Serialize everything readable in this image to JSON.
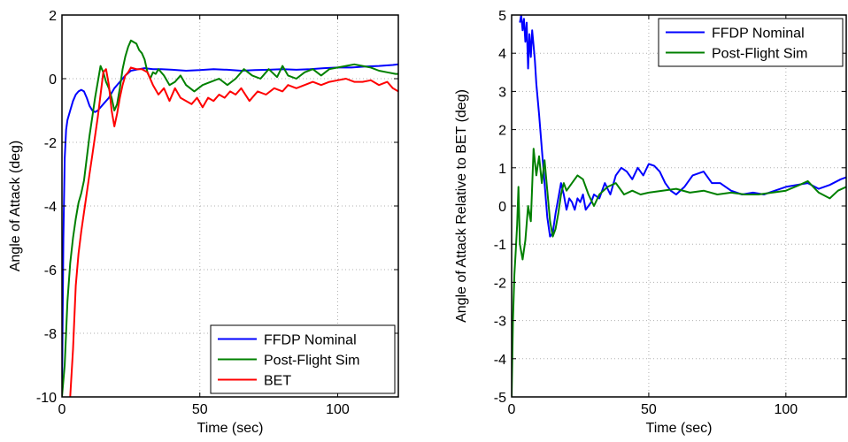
{
  "chart_data": [
    {
      "type": "line",
      "title": "",
      "xlabel": "Time (sec)",
      "ylabel": "Angle of Attack (deg)",
      "xlim": [
        0,
        122
      ],
      "ylim": [
        -10,
        2
      ],
      "xticks": [
        0,
        50,
        100
      ],
      "yticks": [
        -10,
        -8,
        -6,
        -4,
        -2,
        0,
        2
      ],
      "grid": true,
      "legend_position": "bottom-right",
      "series": [
        {
          "name": "FFDP Nominal",
          "color": "#0000ff",
          "x": [
            0,
            0.5,
            1,
            1.5,
            2,
            3,
            4,
            5,
            6,
            7,
            8,
            9,
            10,
            11,
            12,
            13,
            14,
            15,
            17,
            19,
            21,
            23,
            25,
            28,
            30,
            33,
            36,
            40,
            45,
            50,
            55,
            60,
            65,
            70,
            75,
            80,
            85,
            90,
            95,
            100,
            105,
            110,
            115,
            120,
            122
          ],
          "y": [
            -10,
            -5,
            -2.5,
            -1.6,
            -1.3,
            -1.0,
            -0.7,
            -0.5,
            -0.4,
            -0.35,
            -0.4,
            -0.6,
            -0.85,
            -1.0,
            -1.05,
            -1.0,
            -0.9,
            -0.8,
            -0.6,
            -0.3,
            -0.1,
            0.1,
            0.25,
            0.3,
            0.33,
            0.3,
            0.3,
            0.28,
            0.25,
            0.27,
            0.3,
            0.28,
            0.25,
            0.27,
            0.28,
            0.3,
            0.28,
            0.3,
            0.33,
            0.35,
            0.35,
            0.38,
            0.4,
            0.43,
            0.45
          ]
        },
        {
          "name": "Post-Flight Sim",
          "color": "#008000",
          "x": [
            0,
            1,
            2,
            3,
            4,
            5,
            6,
            7,
            8,
            9,
            10,
            11,
            12,
            13,
            14,
            15,
            16,
            17,
            18,
            19,
            20,
            21,
            22,
            23,
            24,
            25,
            26,
            27,
            28,
            29,
            30,
            31,
            32,
            33,
            34,
            35,
            37,
            39,
            41,
            43,
            45,
            48,
            51,
            54,
            57,
            60,
            63,
            66,
            69,
            72,
            75,
            78,
            80,
            82,
            85,
            88,
            91,
            94,
            97,
            100,
            103,
            106,
            109,
            112,
            115,
            118,
            121,
            122
          ],
          "y": [
            -10,
            -9,
            -7,
            -5.8,
            -5,
            -4.4,
            -3.9,
            -3.6,
            -3.2,
            -2.5,
            -1.8,
            -1.2,
            -0.6,
            -0.1,
            0.4,
            0.2,
            -0.1,
            -0.3,
            -0.6,
            -1.0,
            -0.8,
            -0.3,
            0.3,
            0.7,
            1.0,
            1.2,
            1.15,
            1.1,
            0.9,
            0.8,
            0.6,
            0.2,
            0.0,
            0.2,
            0.15,
            0.3,
            0.1,
            -0.2,
            -0.1,
            0.1,
            -0.2,
            -0.4,
            -0.2,
            -0.1,
            0.0,
            -0.2,
            0.0,
            0.3,
            0.1,
            0.0,
            0.3,
            0.05,
            0.4,
            0.1,
            0.0,
            0.2,
            0.3,
            0.1,
            0.3,
            0.35,
            0.4,
            0.45,
            0.4,
            0.35,
            0.25,
            0.2,
            0.15,
            0.15
          ]
        },
        {
          "name": "BET",
          "color": "#ff0000",
          "x": [
            3,
            4,
            5,
            6,
            7,
            8,
            9,
            10,
            11,
            12,
            13,
            14,
            15,
            16,
            17,
            18,
            19,
            20,
            21,
            22,
            23,
            24,
            25,
            27,
            29,
            31,
            33,
            35,
            37,
            39,
            41,
            43,
            45,
            47,
            49,
            51,
            53,
            55,
            57,
            59,
            61,
            63,
            65,
            68,
            71,
            74,
            77,
            80,
            82,
            85,
            88,
            91,
            94,
            97,
            100,
            103,
            106,
            109,
            112,
            115,
            118,
            120,
            122
          ],
          "y": [
            -10,
            -8.5,
            -6.5,
            -5.5,
            -4.8,
            -4.2,
            -3.6,
            -3.0,
            -2.4,
            -1.8,
            -1.2,
            -0.5,
            0.2,
            0.3,
            -0.2,
            -1.0,
            -1.5,
            -1.1,
            -0.6,
            -0.2,
            0.1,
            0.2,
            0.35,
            0.3,
            0.3,
            0.2,
            -0.2,
            -0.5,
            -0.3,
            -0.7,
            -0.3,
            -0.6,
            -0.7,
            -0.8,
            -0.6,
            -0.9,
            -0.6,
            -0.7,
            -0.5,
            -0.6,
            -0.4,
            -0.5,
            -0.3,
            -0.7,
            -0.4,
            -0.5,
            -0.3,
            -0.4,
            -0.2,
            -0.3,
            -0.2,
            -0.1,
            -0.2,
            -0.1,
            -0.05,
            0.0,
            -0.1,
            -0.1,
            -0.05,
            -0.2,
            -0.1,
            -0.3,
            -0.4
          ]
        }
      ]
    },
    {
      "type": "line",
      "title": "",
      "xlabel": "Time (sec)",
      "ylabel": "Angle of Attack Relative to BET (deg)",
      "xlim": [
        0,
        122
      ],
      "ylim": [
        -5,
        5
      ],
      "xticks": [
        0,
        50,
        100
      ],
      "yticks": [
        -5,
        -4,
        -3,
        -2,
        -1,
        0,
        1,
        2,
        3,
        4,
        5
      ],
      "grid": true,
      "legend_position": "top-right",
      "series": [
        {
          "name": "FFDP Nominal",
          "color": "#0000ff",
          "x": [
            3,
            3.5,
            4,
            4.5,
            5,
            5.5,
            6,
            6.5,
            7,
            7.5,
            8,
            8.5,
            9,
            10,
            11,
            12,
            13,
            14,
            15,
            16,
            17,
            18,
            19,
            20,
            21,
            22,
            23,
            24,
            25,
            26,
            27,
            28,
            29,
            30,
            32,
            34,
            36,
            38,
            40,
            42,
            44,
            46,
            48,
            50,
            52,
            54,
            56,
            58,
            60,
            63,
            66,
            70,
            73,
            76,
            80,
            84,
            88,
            92,
            96,
            100,
            104,
            108,
            112,
            116,
            120,
            122
          ],
          "y": [
            4.8,
            5.0,
            4.6,
            4.9,
            4.3,
            4.8,
            3.6,
            4.5,
            3.9,
            4.6,
            4.2,
            3.8,
            3.2,
            2.4,
            1.5,
            0.6,
            -0.3,
            -0.8,
            -0.7,
            -0.2,
            0.2,
            0.6,
            0.3,
            -0.1,
            0.2,
            0.1,
            -0.1,
            0.2,
            0.1,
            0.3,
            -0.1,
            0.0,
            0.1,
            0.3,
            0.2,
            0.6,
            0.3,
            0.8,
            1.0,
            0.9,
            0.7,
            1.0,
            0.8,
            1.1,
            1.05,
            0.9,
            0.6,
            0.4,
            0.3,
            0.5,
            0.8,
            0.9,
            0.6,
            0.6,
            0.4,
            0.3,
            0.35,
            0.3,
            0.4,
            0.5,
            0.55,
            0.6,
            0.45,
            0.55,
            0.7,
            0.75
          ]
        },
        {
          "name": "Post-Flight Sim",
          "color": "#008000",
          "x": [
            0,
            0.5,
            1,
            1.5,
            2,
            2.5,
            3,
            4,
            5,
            6,
            7,
            8,
            9,
            10,
            11,
            12,
            13,
            14,
            15,
            16,
            17,
            18,
            19,
            20,
            22,
            24,
            26,
            28,
            30,
            32,
            35,
            38,
            41,
            44,
            47,
            50,
            55,
            60,
            65,
            70,
            75,
            80,
            85,
            90,
            95,
            100,
            105,
            108,
            112,
            116,
            119,
            122
          ],
          "y": [
            -5,
            -3,
            -1.8,
            -1.2,
            -0.5,
            0.5,
            -1.0,
            -1.4,
            -0.9,
            0.0,
            -0.4,
            1.5,
            0.8,
            1.3,
            0.6,
            1.2,
            0.4,
            -0.4,
            -0.8,
            -0.6,
            -0.2,
            0.3,
            0.6,
            0.4,
            0.6,
            0.8,
            0.7,
            0.3,
            0.0,
            0.3,
            0.5,
            0.6,
            0.3,
            0.4,
            0.3,
            0.35,
            0.4,
            0.45,
            0.35,
            0.4,
            0.3,
            0.35,
            0.3,
            0.3,
            0.35,
            0.4,
            0.55,
            0.65,
            0.35,
            0.2,
            0.4,
            0.5
          ]
        }
      ]
    }
  ]
}
